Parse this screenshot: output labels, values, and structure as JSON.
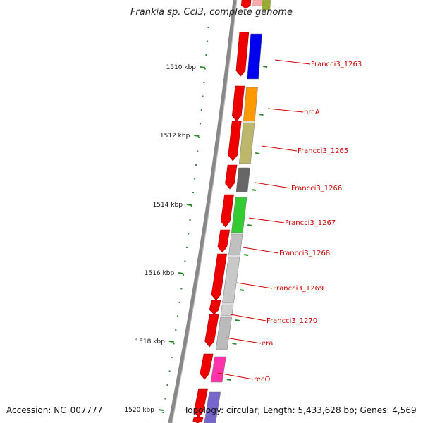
{
  "title": "Frankia sp. CcI3, complete genome",
  "accession": "Accession: NC_007777",
  "topology": "Topology: circular; Length: 5,433,628 bp; Genes: 4,569",
  "scale_labels": [
    "1510 kbp",
    "1512 kbp",
    "1514 kbp",
    "1516 kbp",
    "1518 kbp",
    "1520 kbp"
  ],
  "colors": {
    "cds": "#ee0000",
    "backbone": "#888888",
    "tick": "#2a8a2a",
    "label": "#cc0000"
  },
  "genes": [
    {
      "label": "Francci3_1263",
      "color": "#0000ee"
    },
    {
      "label": "hrcA",
      "color": "#ff9900"
    },
    {
      "label": "Francci3_1265",
      "color": "#bdb76b"
    },
    {
      "label": "Francci3_1266",
      "color": "#666666"
    },
    {
      "label": "Francci3_1267",
      "color": "#33cc33"
    },
    {
      "label": "Francci3_1268",
      "color": "#c0c0c0"
    },
    {
      "label": "Francci3_1269",
      "color": "#c8c8c8"
    },
    {
      "label": "Francci3_1270",
      "color": "#d0d0d0"
    },
    {
      "label": "era",
      "color": "#bbbbbb"
    },
    {
      "label": "recO",
      "color": "#ff33aa"
    }
  ]
}
